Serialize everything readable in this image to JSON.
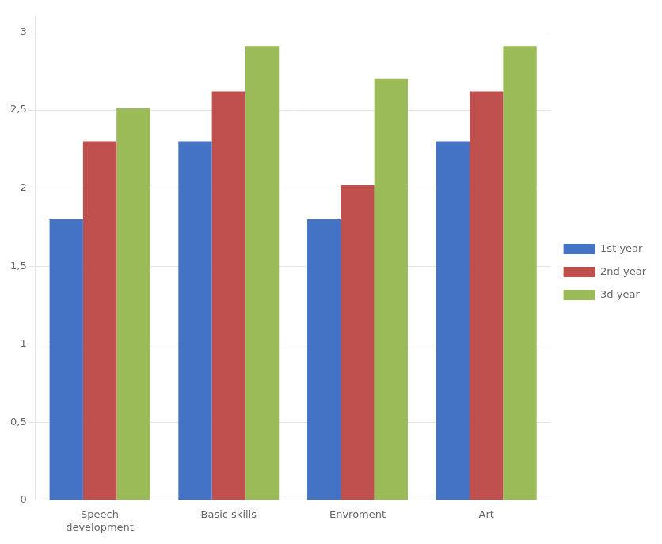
{
  "chart_data": {
    "type": "bar",
    "categories": [
      "Speech\ndevelopment",
      "Basic skills",
      "Envroment",
      "Art"
    ],
    "series": [
      {
        "name": "1st year",
        "color": "#4472C4",
        "values": [
          1.8,
          2.3,
          1.8,
          2.3
        ]
      },
      {
        "name": "2nd year",
        "color": "#C0504D",
        "values": [
          2.3,
          2.62,
          2.02,
          2.62
        ]
      },
      {
        "name": "3d year",
        "color": "#9BBB59",
        "values": [
          2.51,
          2.91,
          2.7,
          2.91
        ]
      }
    ],
    "ylim": [
      0,
      3.1
    ],
    "yticks": [
      0,
      {
        "value": 0.5,
        "label": "0,5"
      },
      1,
      {
        "value": 1.5,
        "label": "1,5"
      },
      2,
      {
        "value": 2.5,
        "label": "2,5"
      },
      3
    ],
    "grid": true,
    "legend": "right"
  }
}
